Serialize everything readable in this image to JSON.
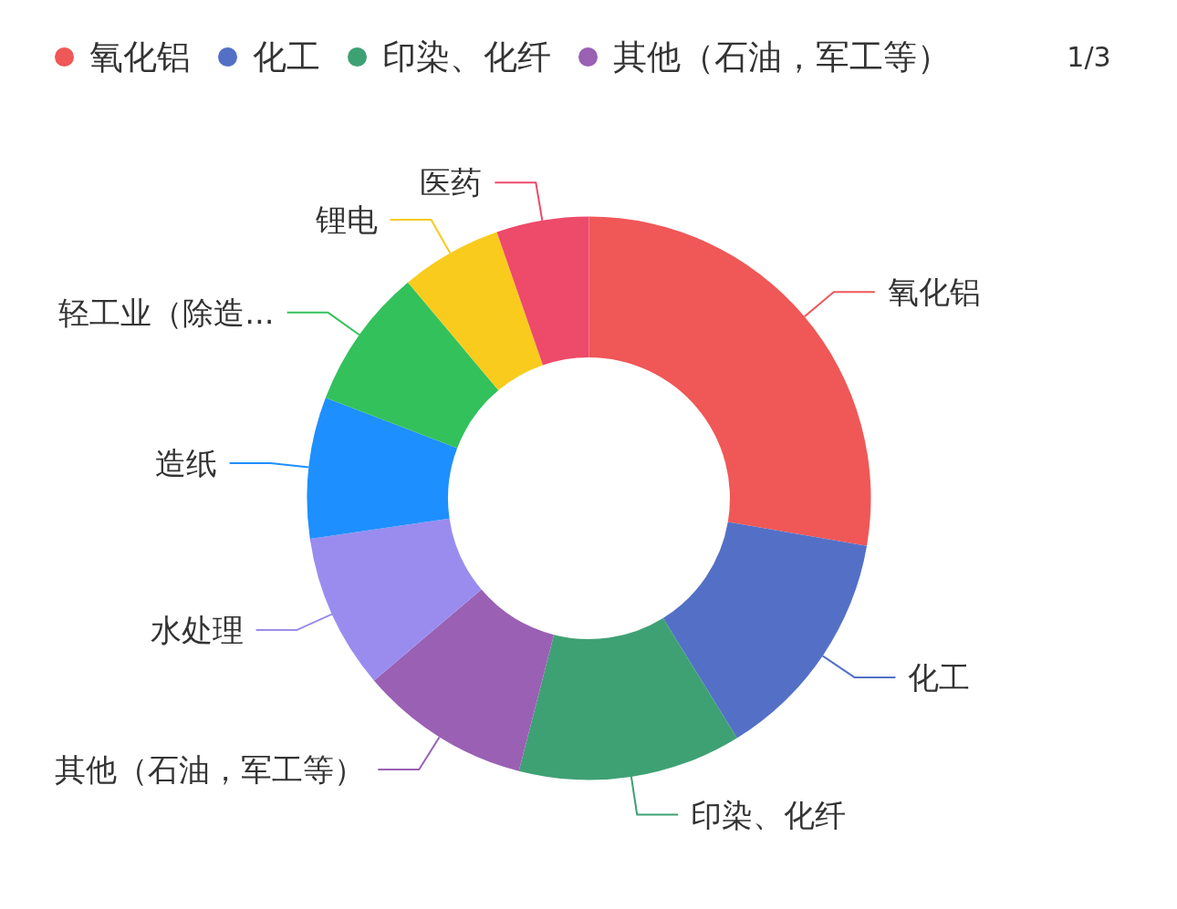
{
  "chart_data": {
    "type": "donut",
    "categories": [
      "氧化铝",
      "化工",
      "印染、化纤",
      "其他（石油，军工等）",
      "水处理",
      "造纸",
      "轻工业（除造...",
      "锂电",
      "医药"
    ],
    "values": [
      27.7,
      13.5,
      12.8,
      9.8,
      8.9,
      8.1,
      8.1,
      5.8,
      5.3
    ],
    "colors": [
      "#f05757",
      "#5470c6",
      "#3ea174",
      "#9a60b4",
      "#9a8cef",
      "#1e8fff",
      "#33c15c",
      "#f8cb1d",
      "#ee4a69"
    ],
    "legend": "top",
    "annotations": [
      "1/3"
    ]
  }
}
